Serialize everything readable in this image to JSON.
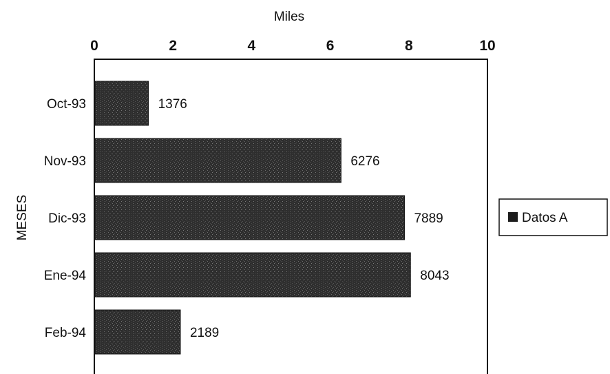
{
  "chart_data": {
    "type": "bar",
    "orientation": "horizontal",
    "title": "",
    "xlabel": "Miles",
    "ylabel": "MESES",
    "xlim": [
      0,
      10
    ],
    "x_ticks": [
      0,
      2,
      4,
      6,
      8,
      10
    ],
    "categories": [
      "Oct-93",
      "Nov-93",
      "Dic-93",
      "Ene-94",
      "Feb-94"
    ],
    "series": [
      {
        "name": "Datos A",
        "values": [
          1376,
          6276,
          7889,
          8043,
          2189
        ],
        "value_labels": [
          "1376",
          "6276",
          "7889",
          "8043",
          "2189"
        ],
        "color": "#2b2b2b"
      }
    ],
    "value_unit_divisor": 1000,
    "grid": false,
    "legend_position": "right"
  }
}
